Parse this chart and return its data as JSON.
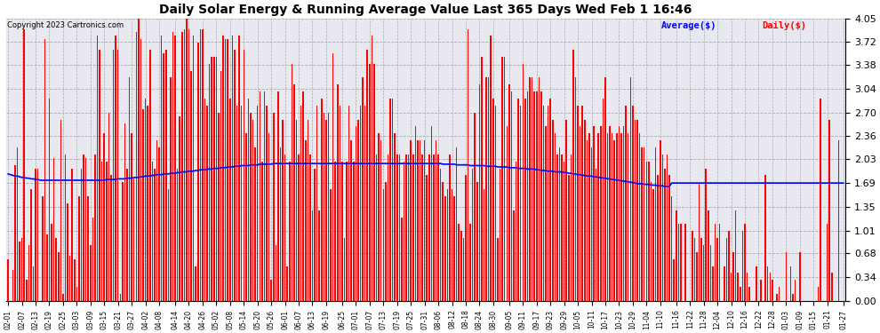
{
  "title": "Daily Solar Energy & Running Average Value Last 365 Days Wed Feb 1 16:46",
  "copyright": "Copyright 2023 Cartronics.com",
  "legend_avg": "Average($)",
  "legend_daily": "Daily($)",
  "ylim": [
    0.0,
    4.05
  ],
  "yticks": [
    0.0,
    0.34,
    0.68,
    1.01,
    1.35,
    1.69,
    2.03,
    2.36,
    2.7,
    3.04,
    3.38,
    3.72,
    4.05
  ],
  "bar_color": "#ff0000",
  "avg_color": "#0000ff",
  "bg_color": "#ffffff",
  "grid_color": "#aaaaaa",
  "title_color": "#000000",
  "bar_width": 0.6,
  "x_labels": [
    "02-01",
    "02-07",
    "02-13",
    "02-19",
    "02-25",
    "03-03",
    "03-09",
    "03-15",
    "03-21",
    "03-27",
    "04-02",
    "04-08",
    "04-14",
    "04-20",
    "04-26",
    "05-02",
    "05-08",
    "05-14",
    "05-20",
    "05-26",
    "06-01",
    "06-07",
    "06-13",
    "06-19",
    "06-25",
    "07-01",
    "07-07",
    "07-13",
    "07-19",
    "07-25",
    "07-31",
    "08-06",
    "08-12",
    "08-18",
    "08-24",
    "08-30",
    "09-05",
    "09-11",
    "09-17",
    "09-23",
    "09-29",
    "10-05",
    "10-11",
    "10-17",
    "10-23",
    "10-29",
    "11-04",
    "11-10",
    "11-16",
    "11-22",
    "11-28",
    "12-04",
    "12-10",
    "12-16",
    "12-22",
    "12-28",
    "01-03",
    "01-09",
    "01-15",
    "01-21",
    "01-27"
  ],
  "daily_values": [
    0.6,
    0.0,
    0.45,
    1.95,
    2.2,
    0.85,
    0.9,
    3.9,
    0.3,
    0.8,
    1.6,
    0.5,
    1.9,
    1.9,
    0.0,
    1.5,
    3.75,
    0.95,
    2.9,
    1.1,
    2.05,
    0.9,
    0.7,
    2.6,
    0.1,
    2.1,
    1.4,
    0.65,
    1.9,
    0.6,
    0.2,
    1.5,
    1.9,
    2.1,
    2.05,
    1.5,
    0.8,
    1.2,
    2.1,
    3.8,
    3.6,
    2.0,
    2.4,
    2.0,
    2.7,
    1.8,
    3.6,
    3.8,
    3.6,
    0.1,
    1.7,
    2.55,
    1.9,
    3.2,
    2.4,
    1.75,
    3.85,
    4.05,
    3.75,
    2.75,
    2.9,
    2.8,
    3.6,
    2.0,
    1.9,
    2.3,
    2.2,
    3.8,
    3.55,
    3.6,
    1.6,
    3.2,
    3.85,
    3.8,
    1.9,
    2.65,
    3.85,
    3.9,
    4.05,
    3.9,
    3.3,
    3.8,
    0.5,
    3.7,
    3.9,
    3.9,
    2.9,
    2.8,
    3.4,
    3.5,
    3.5,
    3.5,
    2.7,
    3.3,
    3.8,
    3.75,
    3.75,
    2.9,
    3.8,
    3.6,
    2.8,
    3.8,
    2.8,
    3.6,
    2.4,
    2.9,
    2.7,
    2.6,
    2.2,
    2.8,
    3.0,
    2.0,
    3.0,
    2.8,
    2.4,
    0.3,
    2.7,
    0.8,
    3.0,
    2.2,
    2.6,
    2.1,
    0.5,
    2.0,
    3.4,
    3.1,
    2.6,
    2.1,
    2.8,
    3.0,
    2.3,
    2.6,
    2.1,
    1.3,
    1.9,
    2.8,
    1.3,
    2.9,
    2.7,
    2.6,
    2.7,
    1.6,
    3.55,
    2.0,
    3.1,
    2.8,
    2.0,
    0.9,
    2.0,
    2.8,
    2.3,
    2.0,
    2.5,
    2.6,
    2.8,
    3.2,
    2.8,
    3.6,
    3.4,
    3.8,
    3.4,
    2.1,
    2.4,
    2.3,
    1.6,
    1.7,
    2.1,
    2.9,
    2.9,
    2.4,
    2.1,
    2.1,
    1.2,
    2.0,
    2.1,
    2.1,
    2.3,
    2.1,
    2.5,
    2.3,
    2.3,
    2.1,
    2.3,
    1.8,
    2.1,
    2.5,
    2.1,
    2.3,
    2.1,
    1.9,
    1.7,
    1.5,
    1.6,
    2.1,
    1.6,
    1.5,
    2.2,
    1.1,
    1.0,
    0.9,
    1.8,
    3.9,
    1.1,
    1.9,
    2.7,
    1.7,
    3.1,
    3.5,
    1.6,
    3.2,
    3.2,
    3.8,
    2.9,
    2.8,
    0.9,
    1.9,
    3.5,
    3.5,
    2.5,
    3.1,
    3.0,
    1.3,
    2.0,
    2.9,
    2.8,
    3.4,
    2.9,
    3.0,
    3.2,
    3.2,
    3.0,
    3.0,
    3.2,
    3.0,
    2.8,
    2.5,
    2.8,
    2.9,
    2.6,
    2.4,
    2.1,
    2.2,
    2.1,
    2.0,
    2.6,
    1.8,
    2.1,
    3.6,
    3.2,
    2.8,
    2.5,
    2.8,
    2.6,
    2.3,
    2.4,
    2.2,
    2.5,
    1.9,
    2.4,
    2.5,
    2.9,
    3.2,
    2.4,
    2.5,
    2.4,
    2.3,
    2.4,
    2.5,
    2.4,
    2.5,
    2.8,
    2.4,
    3.2,
    2.8,
    2.6,
    2.6,
    2.4,
    2.2,
    2.2,
    2.0,
    2.0,
    1.7,
    1.6,
    2.2,
    1.8,
    2.3,
    2.1,
    1.9,
    2.1,
    1.8,
    1.5,
    0.6,
    1.3,
    1.1,
    1.1,
    0.0,
    1.1,
    0.0,
    0.0,
    1.0,
    0.9,
    0.7,
    1.7,
    0.9,
    0.8,
    1.9,
    1.3,
    0.8,
    0.5,
    1.1,
    0.9,
    1.1,
    0.0,
    0.5,
    0.9,
    1.0,
    0.4,
    0.7,
    1.3,
    0.4,
    0.2,
    1.0,
    1.1,
    0.4,
    0.2,
    0.0,
    0.0,
    0.5,
    0.0,
    0.3,
    0.0,
    1.8,
    0.5,
    0.4,
    0.3,
    0.0,
    0.1,
    0.2,
    0.0,
    0.0,
    0.7,
    0.0,
    0.5,
    0.1,
    0.3,
    0.0,
    0.7,
    0.0,
    0.0,
    0.0,
    0.0,
    0.0,
    0.0,
    0.0,
    0.2,
    2.9,
    0.0,
    0.0,
    1.1,
    2.6,
    0.4,
    0.0,
    0.0,
    2.3,
    0.0,
    0.0
  ],
  "avg_values": [
    1.82,
    1.81,
    1.8,
    1.79,
    1.79,
    1.78,
    1.77,
    1.77,
    1.76,
    1.76,
    1.75,
    1.75,
    1.74,
    1.74,
    1.73,
    1.73,
    1.73,
    1.73,
    1.73,
    1.73,
    1.73,
    1.73,
    1.73,
    1.73,
    1.73,
    1.73,
    1.73,
    1.73,
    1.73,
    1.73,
    1.73,
    1.73,
    1.73,
    1.73,
    1.73,
    1.73,
    1.73,
    1.73,
    1.73,
    1.73,
    1.73,
    1.73,
    1.73,
    1.74,
    1.74,
    1.74,
    1.74,
    1.74,
    1.75,
    1.75,
    1.75,
    1.75,
    1.76,
    1.76,
    1.76,
    1.77,
    1.77,
    1.77,
    1.78,
    1.78,
    1.79,
    1.79,
    1.79,
    1.8,
    1.8,
    1.81,
    1.81,
    1.81,
    1.82,
    1.82,
    1.82,
    1.83,
    1.83,
    1.83,
    1.84,
    1.84,
    1.85,
    1.85,
    1.85,
    1.86,
    1.86,
    1.86,
    1.87,
    1.87,
    1.88,
    1.88,
    1.88,
    1.89,
    1.89,
    1.89,
    1.9,
    1.9,
    1.9,
    1.91,
    1.91,
    1.91,
    1.92,
    1.92,
    1.92,
    1.93,
    1.93,
    1.93,
    1.94,
    1.94,
    1.94,
    1.94,
    1.95,
    1.95,
    1.95,
    1.95,
    1.96,
    1.96,
    1.96,
    1.96,
    1.96,
    1.96,
    1.97,
    1.97,
    1.97,
    1.97,
    1.97,
    1.97,
    1.97,
    1.97,
    1.97,
    1.97,
    1.97,
    1.97,
    1.97,
    1.97,
    1.97,
    1.97,
    1.97,
    1.97,
    1.97,
    1.97,
    1.97,
    1.97,
    1.97,
    1.97,
    1.97,
    1.97,
    1.97,
    1.97,
    1.97,
    1.97,
    1.97,
    1.97,
    1.97,
    1.97,
    1.97,
    1.97,
    1.97,
    1.97,
    1.97,
    1.97,
    1.97,
    1.97,
    1.97,
    1.97,
    1.97,
    1.97,
    1.97,
    1.97,
    1.97,
    1.97,
    1.97,
    1.97,
    1.97,
    1.97,
    1.97,
    1.97,
    1.97,
    1.97,
    1.97,
    1.97,
    1.97,
    1.97,
    1.97,
    1.97,
    1.97,
    1.97,
    1.97,
    1.97,
    1.97,
    1.97,
    1.97,
    1.97,
    1.97,
    1.97,
    1.96,
    1.96,
    1.96,
    1.96,
    1.96,
    1.96,
    1.95,
    1.95,
    1.95,
    1.95,
    1.95,
    1.95,
    1.94,
    1.94,
    1.94,
    1.94,
    1.94,
    1.94,
    1.94,
    1.93,
    1.93,
    1.93,
    1.93,
    1.93,
    1.92,
    1.92,
    1.92,
    1.92,
    1.92,
    1.91,
    1.91,
    1.91,
    1.91,
    1.9,
    1.9,
    1.9,
    1.9,
    1.89,
    1.89,
    1.89,
    1.89,
    1.88,
    1.88,
    1.87,
    1.87,
    1.87,
    1.86,
    1.86,
    1.86,
    1.85,
    1.85,
    1.85,
    1.85,
    1.84,
    1.84,
    1.83,
    1.83,
    1.82,
    1.82,
    1.81,
    1.81,
    1.8,
    1.8,
    1.79,
    1.79,
    1.79,
    1.78,
    1.78,
    1.77,
    1.77,
    1.76,
    1.76,
    1.75,
    1.75,
    1.74,
    1.74,
    1.73,
    1.73,
    1.72,
    1.72,
    1.71,
    1.71,
    1.7,
    1.7,
    1.69,
    1.68,
    1.68,
    1.68,
    1.67,
    1.67,
    1.67,
    1.66,
    1.66,
    1.66,
    1.65,
    1.65,
    1.65,
    1.64,
    1.64,
    1.64,
    1.69,
    1.69,
    1.69,
    1.69,
    1.69,
    1.69,
    1.69,
    1.69,
    1.69,
    1.69,
    1.69,
    1.69,
    1.69,
    1.69,
    1.69,
    1.69,
    1.69,
    1.69,
    1.69,
    1.69,
    1.69,
    1.69,
    1.69,
    1.69,
    1.69,
    1.69,
    1.69,
    1.69,
    1.69,
    1.69,
    1.69,
    1.69,
    1.69,
    1.69,
    1.69,
    1.69,
    1.69,
    1.69,
    1.69,
    1.69,
    1.69,
    1.69,
    1.69,
    1.69,
    1.69,
    1.69,
    1.69,
    1.69,
    1.69,
    1.69,
    1.69,
    1.69,
    1.69,
    1.69,
    1.69,
    1.69,
    1.69,
    1.69,
    1.69,
    1.69,
    1.69,
    1.69,
    1.69,
    1.69,
    1.69,
    1.69,
    1.69,
    1.69,
    1.69,
    1.69,
    1.69,
    1.69,
    1.69,
    1.69,
    1.69,
    1.69
  ]
}
